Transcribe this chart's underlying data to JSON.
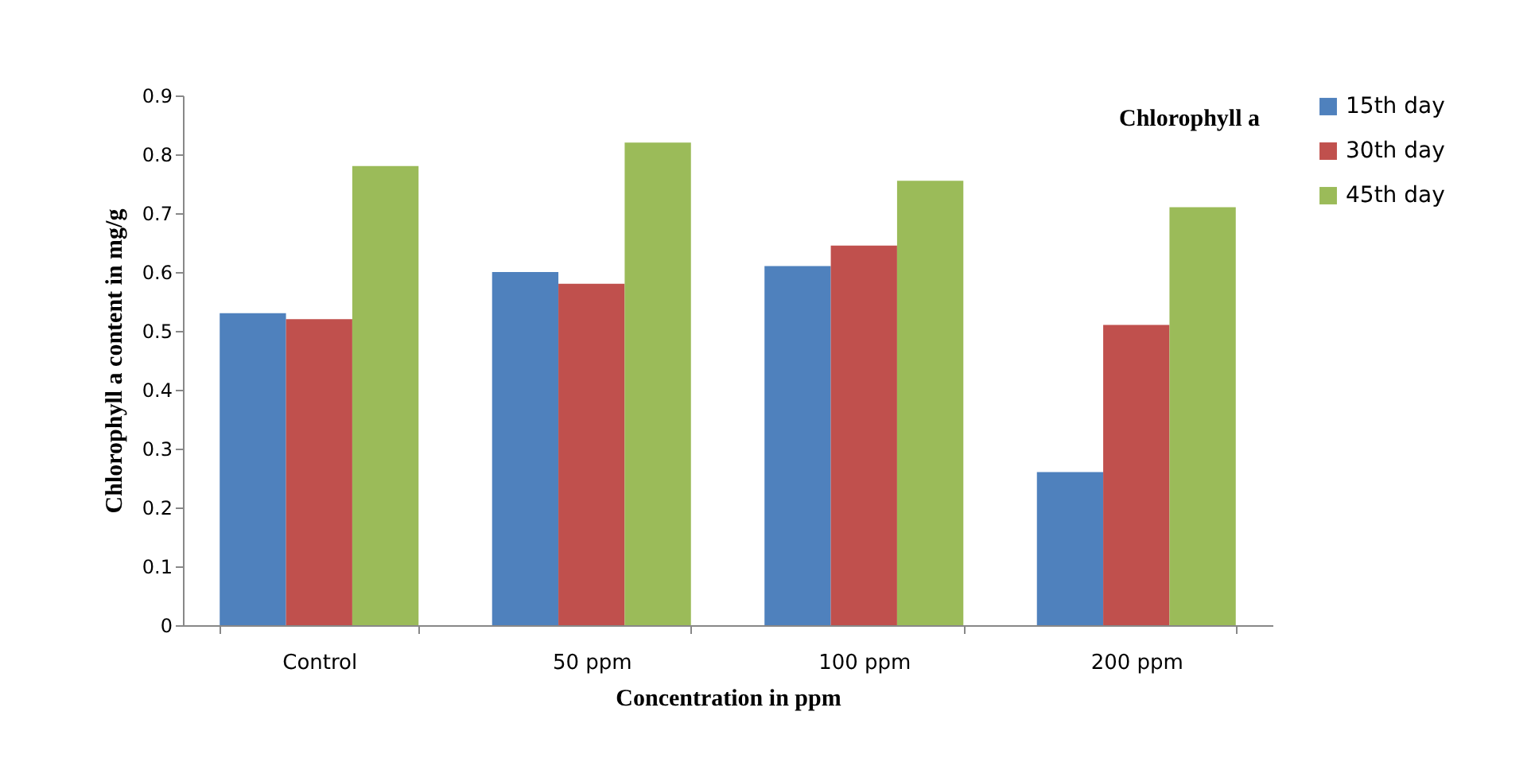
{
  "chart_data": {
    "type": "bar",
    "title": "Chlorophyll  a",
    "xlabel": "Concentration in ppm",
    "ylabel": "Chlorophyll a content in mg/g",
    "categories": [
      "Control",
      "50 ppm",
      "100 ppm",
      "200 ppm"
    ],
    "series": [
      {
        "name": "15th day",
        "color": "#4f81bd",
        "values": [
          0.53,
          0.6,
          0.61,
          0.26
        ]
      },
      {
        "name": "30th day",
        "color": "#c0504d",
        "values": [
          0.52,
          0.58,
          0.645,
          0.51
        ]
      },
      {
        "name": "45th day",
        "color": "#9bbb59",
        "values": [
          0.78,
          0.82,
          0.755,
          0.71
        ]
      }
    ],
    "ylim": [
      0,
      0.9
    ],
    "yticks": [
      0,
      0.1,
      0.2,
      0.3,
      0.4,
      0.5,
      0.6,
      0.7,
      0.8,
      0.9
    ],
    "grid": false,
    "legend": "right"
  }
}
